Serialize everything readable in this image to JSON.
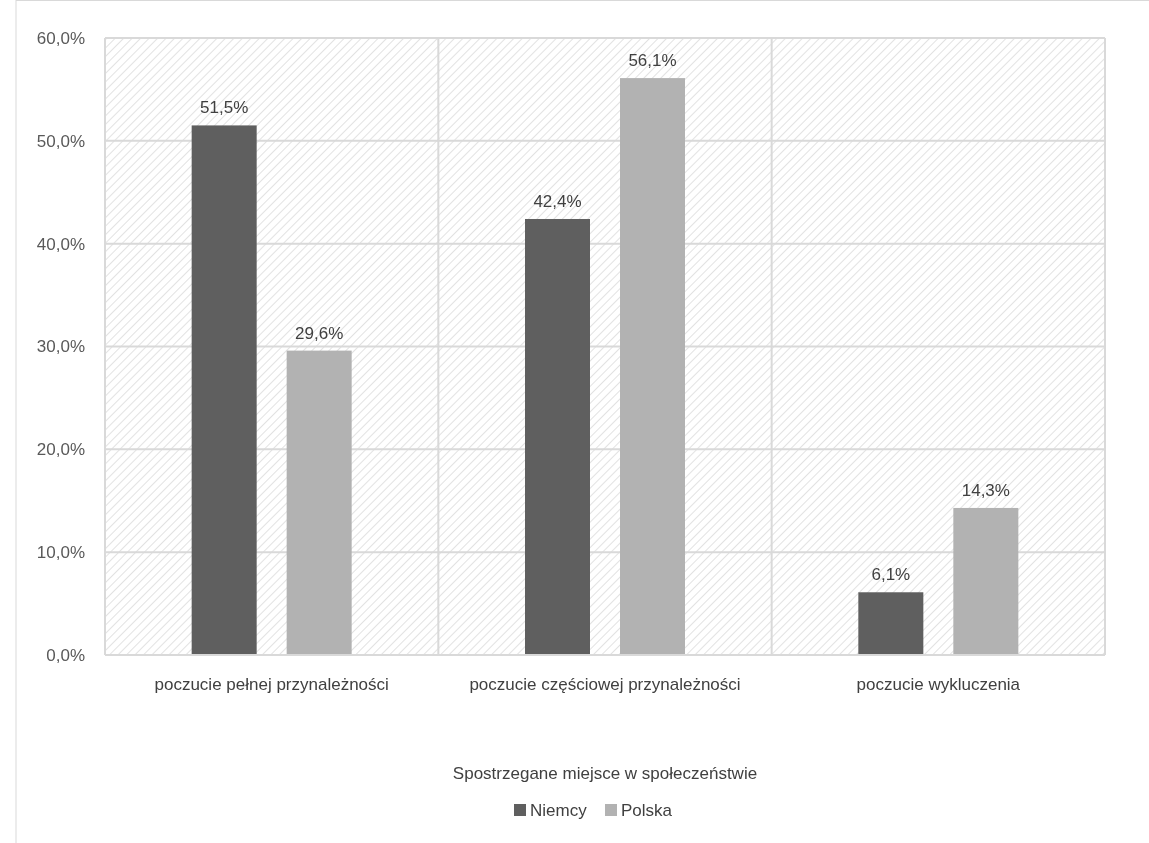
{
  "chart_data": {
    "type": "bar",
    "xlabel": "Spostrzegane miejsce w społeczeństwie",
    "categories": [
      "poczucie pełnej przynależności",
      "poczucie częściowej przynależności",
      "poczucie wykluczenia"
    ],
    "series": [
      {
        "name": "Niemcy",
        "color": "#5f5f5f",
        "values": [
          51.5,
          42.4,
          6.1
        ],
        "value_labels": [
          "51,5%",
          "42,4%",
          "6,1%"
        ]
      },
      {
        "name": "Polska",
        "color": "#b2b2b2",
        "values": [
          29.6,
          56.1,
          14.3
        ],
        "value_labels": [
          "29,6%",
          "56,1%",
          "14,3%"
        ]
      }
    ],
    "ylim": [
      0,
      60
    ],
    "yticks": [
      {
        "value": 0,
        "label": "0,0%"
      },
      {
        "value": 10,
        "label": "10,0%"
      },
      {
        "value": 20,
        "label": "20,0%"
      },
      {
        "value": 30,
        "label": "30,0%"
      },
      {
        "value": 40,
        "label": "40,0%"
      },
      {
        "value": 50,
        "label": "50,0%"
      },
      {
        "value": 60,
        "label": "60,0%"
      }
    ],
    "grid": true,
    "legend": "bottom"
  }
}
